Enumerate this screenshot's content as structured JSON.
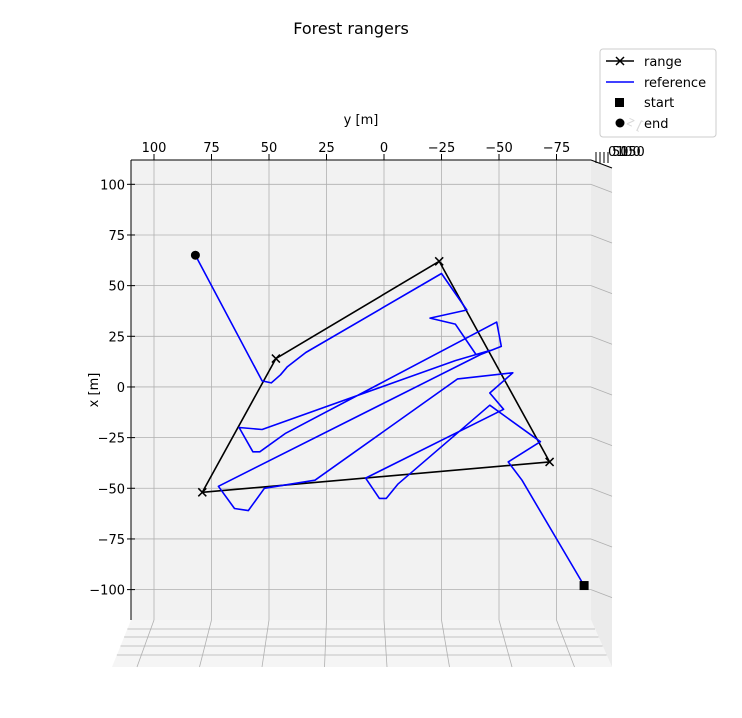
{
  "chart_data": {
    "type": "line",
    "title": "Forest rangers",
    "xlabel": "y [m]",
    "ylabel": "x [m]",
    "zlabel": "z [",
    "x_ticks": [
      100,
      75,
      50,
      25,
      0,
      -25,
      -50,
      -75
    ],
    "x_tick_labels": [
      "100",
      "75",
      "50",
      "25",
      "0",
      "−25",
      "−50",
      "−75"
    ],
    "y_ticks": [
      100,
      75,
      50,
      25,
      0,
      -25,
      -50,
      -75,
      -100
    ],
    "y_tick_labels": [
      "100",
      "75",
      "50",
      "25",
      "0",
      "−25",
      "−50",
      "−75",
      "−100"
    ],
    "z_tick_labels": [
      "0",
      "50",
      "100",
      "150"
    ],
    "xlim": [
      110,
      -90
    ],
    "ylim": [
      -115,
      112
    ],
    "grid": true,
    "legend_position": "top-right",
    "legend": [
      "range",
      "reference",
      "start",
      "end"
    ],
    "series": [
      {
        "name": "range",
        "color": "#000000",
        "marker": "x",
        "points": [
          [
            -24,
            62
          ],
          [
            47,
            14
          ],
          [
            79,
            -52
          ],
          [
            -72,
            -37
          ],
          [
            -24,
            62
          ]
        ]
      },
      {
        "name": "reference",
        "color": "#0000ff",
        "marker": "none",
        "points": [
          [
            82,
            65
          ],
          [
            53,
            3
          ],
          [
            49,
            2
          ],
          [
            45,
            6
          ],
          [
            42,
            10
          ],
          [
            34,
            17
          ],
          [
            -25,
            56
          ],
          [
            -36,
            38
          ],
          [
            -20,
            34
          ],
          [
            -31,
            31
          ],
          [
            -40,
            16
          ],
          [
            -46,
            18
          ],
          [
            -31,
            13
          ],
          [
            53,
            -21
          ],
          [
            63,
            -20
          ],
          [
            57,
            -32
          ],
          [
            54,
            -32
          ],
          [
            43,
            -23
          ],
          [
            -49,
            32
          ],
          [
            -51,
            20
          ],
          [
            -42,
            16
          ],
          [
            72,
            -49
          ],
          [
            65,
            -60
          ],
          [
            59,
            -61
          ],
          [
            52,
            -50
          ],
          [
            30,
            -46
          ],
          [
            -32,
            4
          ],
          [
            -56,
            7
          ],
          [
            -46,
            -3
          ],
          [
            -52,
            -11
          ],
          [
            8,
            -45
          ],
          [
            2,
            -55
          ],
          [
            -1,
            -55
          ],
          [
            -6,
            -48
          ],
          [
            -46,
            -9
          ],
          [
            -68,
            -27
          ],
          [
            -54,
            -37
          ],
          [
            -60,
            -46
          ],
          [
            -87,
            -98
          ]
        ]
      },
      {
        "name": "start",
        "color": "#000000",
        "marker": "square",
        "points": [
          [
            -87,
            -98
          ]
        ]
      },
      {
        "name": "end",
        "color": "#000000",
        "marker": "circle",
        "points": [
          [
            82,
            65
          ]
        ]
      }
    ]
  }
}
